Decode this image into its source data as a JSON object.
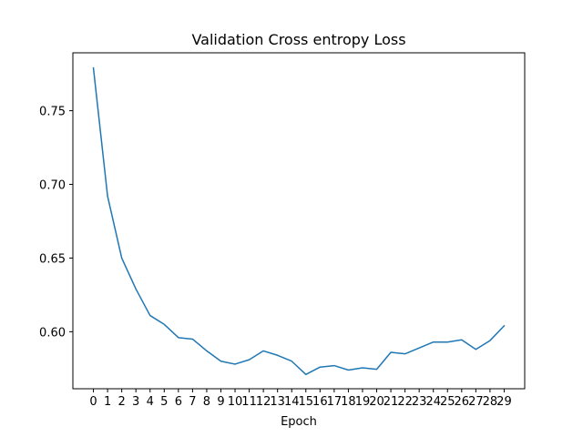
{
  "chart_data": {
    "type": "line",
    "title": "Validation Cross entropy Loss",
    "xlabel": "Epoch",
    "ylabel": "",
    "grid": false,
    "x": [
      0,
      1,
      2,
      3,
      4,
      5,
      6,
      7,
      8,
      9,
      10,
      11,
      12,
      13,
      14,
      15,
      16,
      17,
      18,
      19,
      20,
      21,
      22,
      23,
      24,
      25,
      26,
      27,
      28,
      29
    ],
    "x_tick_labels": [
      "0",
      "1",
      "2",
      "3",
      "4",
      "5",
      "6",
      "7",
      "8",
      "9",
      "10",
      "11",
      "12",
      "13",
      "14",
      "15",
      "16",
      "17",
      "18",
      "19",
      "20",
      "21",
      "22",
      "23",
      "24",
      "25",
      "26",
      "27",
      "28",
      "29"
    ],
    "y_ticks": [
      0.6,
      0.65,
      0.7,
      0.75
    ],
    "y_tick_labels": [
      "0.60",
      "0.65",
      "0.70",
      "0.75"
    ],
    "xlim": [
      -1.45,
      30.45
    ],
    "ylim": [
      0.5613,
      0.7893
    ],
    "series": [
      {
        "color": "#1f77b4",
        "values": [
          0.779,
          0.692,
          0.65,
          0.629,
          0.611,
          0.605,
          0.596,
          0.595,
          0.587,
          0.58,
          0.578,
          0.581,
          0.587,
          0.584,
          0.58,
          0.571,
          0.576,
          0.577,
          0.574,
          0.5755,
          0.5745,
          0.586,
          0.585,
          0.589,
          0.593,
          0.593,
          0.5945,
          0.588,
          0.594,
          0.604
        ]
      }
    ]
  }
}
